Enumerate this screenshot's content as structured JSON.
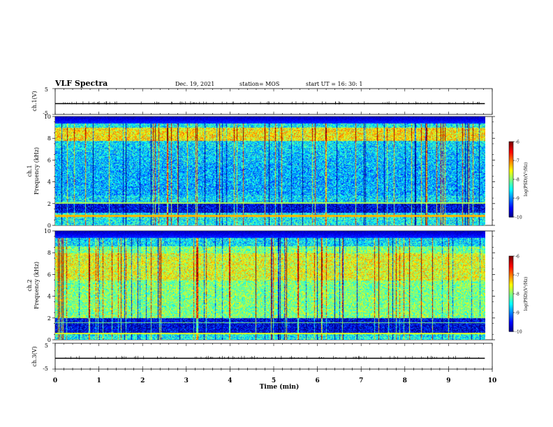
{
  "header": {
    "title": "VLF Spectra",
    "date": "Dec. 19, 2021",
    "station": "station= MOS",
    "start": "start  UT  =   16: 30: 1"
  },
  "chart_data": [
    {
      "type": "line",
      "panel": "ch1-waveform",
      "ylabel": "ch.1(V)",
      "ylim": [
        -5,
        5
      ],
      "yticks": [
        "5",
        "-5"
      ],
      "xlim": [
        0,
        10
      ],
      "data_xlim": [
        0,
        9.83
      ],
      "baseline": -0.8
    },
    {
      "type": "heatmap",
      "panel": "ch1-spectrogram",
      "ylabel_top": "ch.1",
      "ylabel": "Frequency  (kHz)",
      "ylim": [
        0,
        10
      ],
      "yticks": [
        "0",
        "2",
        "4",
        "6",
        "8",
        "10"
      ],
      "xlim": [
        0,
        10
      ],
      "data_xlim": [
        0,
        9.83
      ],
      "colorbar": {
        "label": "log(PSD)(V²/Hz)",
        "range": [
          -10,
          -6
        ],
        "ticks": [
          "-6",
          "-7",
          "-8",
          "-9",
          "-10"
        ]
      }
    },
    {
      "type": "heatmap",
      "panel": "ch2-spectrogram",
      "ylabel_top": "ch.2",
      "ylabel": "Frequency  (kHz)",
      "ylim": [
        0,
        10
      ],
      "yticks": [
        "0",
        "2",
        "4",
        "6",
        "8",
        "10"
      ],
      "xlim": [
        0,
        10
      ],
      "data_xlim": [
        0,
        9.83
      ],
      "colorbar": {
        "label": "log(PSD)(V²/Hz)",
        "range": [
          -10,
          -6
        ],
        "ticks": [
          "-6",
          "-7",
          "-8",
          "-9",
          "-10"
        ]
      }
    },
    {
      "type": "line",
      "panel": "ch3-waveform",
      "ylabel": "ch.3(V)",
      "ylim": [
        -5,
        5
      ],
      "yticks": [
        "5",
        "-5"
      ],
      "xlim": [
        0,
        10
      ],
      "data_xlim": [
        0,
        9.83
      ],
      "baseline": -0.8,
      "xlabel": "Time  (min)",
      "xticks": [
        "0",
        "1",
        "2",
        "3",
        "4",
        "5",
        "6",
        "7",
        "8",
        "9",
        "10"
      ]
    }
  ]
}
